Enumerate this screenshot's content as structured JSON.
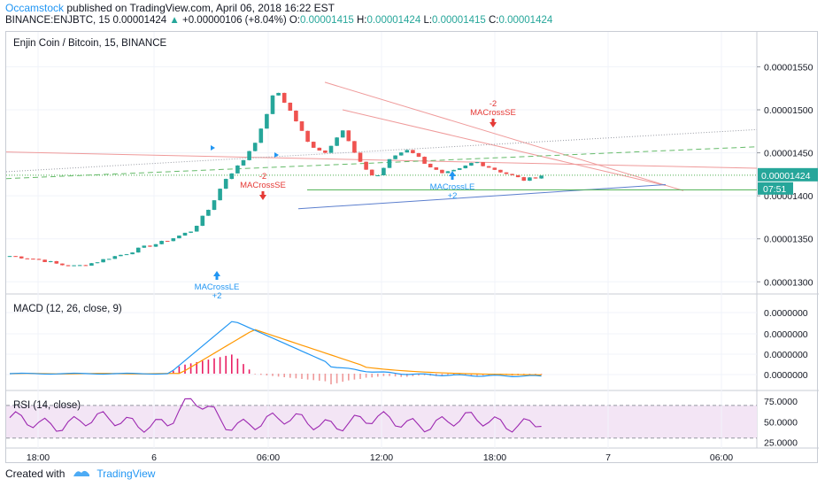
{
  "header": {
    "user": "Occamstock",
    "published": " published on TradingView.com, April 06, 2018 16:22 EST",
    "symbol": "BINANCE:ENJBTC, 15",
    "last": "0.00001424",
    "change": "+0.00000106 (+8.04%)",
    "o_label": "O:",
    "o": "0.00001415",
    "h_label": "H:",
    "h": "0.00001424",
    "l_label": "L:",
    "l": "0.00001415",
    "c_label": "C:",
    "c": "0.00001424"
  },
  "colors": {
    "up": "#26a69a",
    "down": "#ef5350",
    "macd": "#2196f3",
    "signal": "#ff9800",
    "hist_pos": "#e91e63",
    "rsi": "#9c27b0",
    "band": "#f3e5f5",
    "trend_red": "#ef9a9a",
    "trend_blue": "#5c7fce",
    "green_line": "#4caf50",
    "price_tag": "#26a69a"
  },
  "main_pane": {
    "title": "Enjin Coin / Bitcoin, 15, BINANCE",
    "y_ticks": [
      "0.00001550",
      "0.00001500",
      "0.00001450",
      "0.00001400",
      "0.00001350",
      "0.00001300"
    ],
    "price_tag": "0.00001424",
    "countdown": "07:51",
    "signals": [
      {
        "label": "MACrossLE",
        "sub": "+2",
        "dir": "long"
      },
      {
        "label": "MACrossSE",
        "sub": "-2",
        "dir": "short"
      },
      {
        "label": "MACrossLE",
        "sub": "+2",
        "dir": "long"
      },
      {
        "label": "MACrossSE",
        "sub": "-2",
        "dir": "short"
      }
    ]
  },
  "macd_pane": {
    "title": "MACD (12, 26, close, 9)",
    "y_ticks": [
      "0.0000000",
      "0.0000000",
      "0.0000000",
      "0.0000000"
    ]
  },
  "rsi_pane": {
    "title": "RSI (14, close)",
    "y_ticks": [
      "75.0000",
      "50.0000",
      "25.0000"
    ]
  },
  "x_axis": {
    "ticks": [
      "18:00",
      "6",
      "06:00",
      "12:00",
      "18:00",
      "7",
      "06:00"
    ]
  },
  "chart_data": {
    "type": "candlestick",
    "title": "Enjin Coin / Bitcoin, 15, BINANCE",
    "interval": "15",
    "y_range": [
      1.29e-05,
      1.57e-05
    ],
    "closes_approx": [
      1.33e-05,
      1.328e-05,
      1.325e-05,
      1.32e-05,
      1.318e-05,
      1.322e-05,
      1.328e-05,
      1.333e-05,
      1.34e-05,
      1.345e-05,
      1.352e-05,
      1.36e-05,
      1.385e-05,
      1.42e-05,
      1.44e-05,
      1.47e-05,
      1.525e-05,
      1.495e-05,
      1.46e-05,
      1.45e-05,
      1.478e-05,
      1.44e-05,
      1.42e-05,
      1.445e-05,
      1.455e-05,
      1.438e-05,
      1.425e-05,
      1.43e-05,
      1.44e-05,
      1.432e-05,
      1.425e-05,
      1.418e-05,
      1.424e-05
    ],
    "rsi_range": [
      20,
      85
    ],
    "rsi_levels": [
      70,
      30
    ]
  }
}
